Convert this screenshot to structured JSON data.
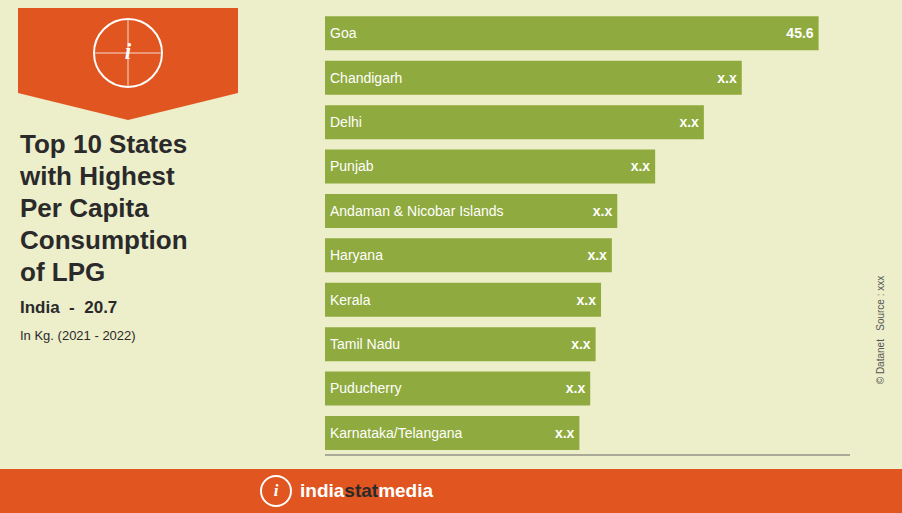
{
  "chart_data": {
    "type": "bar",
    "orientation": "horizontal",
    "title": "Top 10 States\nwith Highest\nPer Capita\nConsumption\nof LPG",
    "subtitle": "India  -  20.7",
    "annotations": [
      "In Kg. (2021 - 2022)",
      "i",
      "india",
      "stat",
      "media",
      "© Datanet   Source : xxx"
    ],
    "categories": [
      "Goa",
      "Chandigarh",
      "Delhi",
      "Punjab",
      "Andaman & Nicobar Islands",
      "Haryana",
      "Kerala",
      "Tamil Nadu",
      "Puducherry",
      "Karnataka/Telangana"
    ],
    "values": [
      45.6,
      38.5,
      35.0,
      30.5,
      27.0,
      26.5,
      25.5,
      25.0,
      24.5,
      23.5
    ],
    "value_labels": [
      "45.6",
      "x.x",
      "x.x",
      "x.x",
      "x.x",
      "x.x",
      "x.x",
      "x.x",
      "x.x",
      "x.x"
    ],
    "data_labels": true,
    "color": "#8faa3e",
    "xlim": [
      0,
      48.5
    ],
    "tick_labels": false,
    "grid": false
  }
}
